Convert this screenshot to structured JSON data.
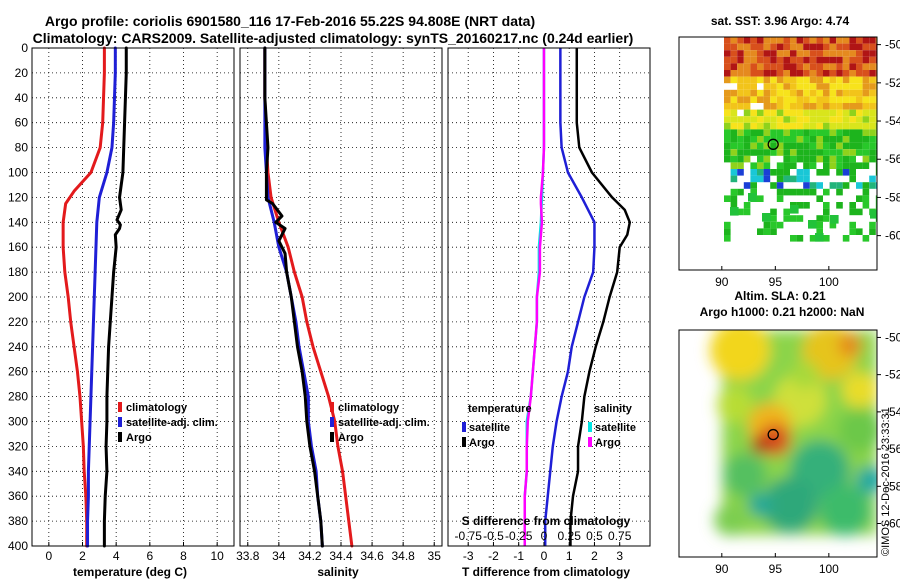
{
  "header": {
    "line1": "Argo profile: coriolis 6901580_116 17-Feb-2016 55.22S 94.808E (NRT data)",
    "line2": "Climatology: CARS2009. Satellite-adjusted climatology: synTS_20160217.nc (0.24d earlier)"
  },
  "colors": {
    "climatology": "#e31a1c",
    "satellite": "#1f1fd6",
    "argo": "#000000",
    "s_sat": "#00e5e5",
    "s_argo": "#ff00ff"
  },
  "chart_data": [
    {
      "type": "line",
      "name": "temperature",
      "xlabel": "temperature (deg C)",
      "ylabel": "",
      "xlim": [
        -1,
        11
      ],
      "ylim": [
        400,
        0
      ],
      "xticks": [
        0,
        2,
        4,
        6,
        8,
        10
      ],
      "yticks": [
        0,
        20,
        40,
        60,
        80,
        100,
        120,
        140,
        160,
        180,
        200,
        220,
        240,
        260,
        280,
        300,
        320,
        340,
        360,
        380,
        400
      ],
      "series": [
        {
          "name": "climatology",
          "color": "#e31a1c",
          "points": [
            [
              3.3,
              0
            ],
            [
              3.3,
              20
            ],
            [
              3.25,
              40
            ],
            [
              3.2,
              60
            ],
            [
              3.05,
              80
            ],
            [
              2.5,
              100
            ],
            [
              1.5,
              115
            ],
            [
              1.0,
              125
            ],
            [
              0.85,
              140
            ],
            [
              0.85,
              160
            ],
            [
              0.95,
              180
            ],
            [
              1.15,
              200
            ],
            [
              1.3,
              220
            ],
            [
              1.5,
              240
            ],
            [
              1.7,
              260
            ],
            [
              1.85,
              280
            ],
            [
              1.95,
              300
            ],
            [
              2.05,
              320
            ],
            [
              2.1,
              340
            ],
            [
              2.2,
              360
            ],
            [
              2.25,
              380
            ],
            [
              2.25,
              400
            ]
          ]
        },
        {
          "name": "satellite-adj. clim.",
          "color": "#1f1fd6",
          "points": [
            [
              3.95,
              0
            ],
            [
              3.95,
              20
            ],
            [
              3.9,
              40
            ],
            [
              3.85,
              60
            ],
            [
              3.75,
              80
            ],
            [
              3.45,
              100
            ],
            [
              3.0,
              120
            ],
            [
              2.85,
              140
            ],
            [
              2.8,
              160
            ],
            [
              2.75,
              180
            ],
            [
              2.7,
              200
            ],
            [
              2.65,
              220
            ],
            [
              2.6,
              240
            ],
            [
              2.55,
              260
            ],
            [
              2.5,
              280
            ],
            [
              2.45,
              300
            ],
            [
              2.4,
              320
            ],
            [
              2.35,
              340
            ],
            [
              2.35,
              360
            ],
            [
              2.3,
              380
            ],
            [
              2.3,
              400
            ]
          ]
        },
        {
          "name": "Argo",
          "color": "#000000",
          "points": [
            [
              4.6,
              0
            ],
            [
              4.6,
              20
            ],
            [
              4.55,
              40
            ],
            [
              4.5,
              60
            ],
            [
              4.45,
              80
            ],
            [
              4.4,
              100
            ],
            [
              4.2,
              120
            ],
            [
              4.3,
              130
            ],
            [
              4.05,
              138
            ],
            [
              4.25,
              142
            ],
            [
              4.2,
              145
            ],
            [
              3.95,
              150
            ],
            [
              4.0,
              160
            ],
            [
              3.85,
              180
            ],
            [
              3.75,
              200
            ],
            [
              3.65,
              220
            ],
            [
              3.55,
              240
            ],
            [
              3.5,
              260
            ],
            [
              3.45,
              280
            ],
            [
              3.45,
              300
            ],
            [
              3.4,
              320
            ],
            [
              3.45,
              340
            ],
            [
              3.35,
              360
            ],
            [
              3.3,
              380
            ],
            [
              3.3,
              400
            ]
          ]
        }
      ],
      "legend": [
        "climatology",
        "satellite-adj. clim.",
        "Argo"
      ]
    },
    {
      "type": "line",
      "name": "salinity",
      "xlabel": "salinity",
      "ylabel": "",
      "xlim": [
        33.75,
        35.05
      ],
      "ylim": [
        400,
        0
      ],
      "xticks": [
        33.8,
        34,
        34.2,
        34.4,
        34.6,
        34.8,
        35
      ],
      "xticklabels": [
        "33.8",
        "34",
        "34.2",
        "34.4",
        "34.6",
        "34.8",
        "35"
      ],
      "series": [
        {
          "name": "climatology",
          "color": "#e31a1c",
          "points": [
            [
              33.91,
              0
            ],
            [
              33.91,
              40
            ],
            [
              33.92,
              80
            ],
            [
              33.93,
              100
            ],
            [
              33.95,
              120
            ],
            [
              34.0,
              140
            ],
            [
              34.06,
              160
            ],
            [
              34.1,
              180
            ],
            [
              34.15,
              200
            ],
            [
              34.18,
              220
            ],
            [
              34.22,
              240
            ],
            [
              34.27,
              260
            ],
            [
              34.32,
              280
            ],
            [
              34.36,
              300
            ],
            [
              34.38,
              320
            ],
            [
              34.41,
              340
            ],
            [
              34.43,
              360
            ],
            [
              34.45,
              380
            ],
            [
              34.47,
              400
            ]
          ]
        },
        {
          "name": "satellite-adj. clim.",
          "color": "#1f1fd6",
          "points": [
            [
              33.91,
              0
            ],
            [
              33.91,
              40
            ],
            [
              33.91,
              80
            ],
            [
              33.92,
              100
            ],
            [
              33.93,
              120
            ],
            [
              33.97,
              140
            ],
            [
              34.0,
              160
            ],
            [
              34.05,
              180
            ],
            [
              34.08,
              200
            ],
            [
              34.11,
              220
            ],
            [
              34.13,
              240
            ],
            [
              34.16,
              260
            ],
            [
              34.19,
              280
            ],
            [
              34.19,
              300
            ],
            [
              34.21,
              320
            ],
            [
              34.24,
              340
            ],
            [
              34.25,
              360
            ],
            [
              34.27,
              380
            ],
            [
              34.28,
              400
            ]
          ]
        },
        {
          "name": "Argo",
          "color": "#000000",
          "points": [
            [
              33.91,
              0
            ],
            [
              33.91,
              40
            ],
            [
              33.92,
              60
            ],
            [
              33.93,
              80
            ],
            [
              33.92,
              100
            ],
            [
              33.92,
              110
            ],
            [
              33.92,
              122
            ],
            [
              33.96,
              125
            ],
            [
              34.02,
              135
            ],
            [
              33.98,
              140
            ],
            [
              34.04,
              145
            ],
            [
              34.0,
              155
            ],
            [
              34.04,
              165
            ],
            [
              34.05,
              180
            ],
            [
              34.08,
              200
            ],
            [
              34.1,
              220
            ],
            [
              34.12,
              240
            ],
            [
              34.15,
              260
            ],
            [
              34.17,
              280
            ],
            [
              34.18,
              300
            ],
            [
              34.2,
              320
            ],
            [
              34.23,
              340
            ],
            [
              34.25,
              360
            ],
            [
              34.27,
              380
            ],
            [
              34.28,
              400
            ]
          ]
        }
      ],
      "legend": [
        "climatology",
        "satellite-adj. clim.",
        "Argo"
      ]
    },
    {
      "type": "line",
      "name": "difference from climatology",
      "xlabel": "T difference from climatology",
      "ylabel": "",
      "xlim": [
        -3.8,
        4.2
      ],
      "ylim": [
        400,
        0
      ],
      "xticks": [
        -3,
        -2,
        -1,
        0,
        1,
        2,
        3
      ],
      "x2label": "S difference from climatology",
      "x2ticks": [
        -0.75,
        -0.5,
        -0.25,
        0,
        0.25,
        0.5,
        0.75
      ],
      "x2ticklabels": [
        "-0.75",
        "-0.5",
        "-0.25",
        "0",
        "0.25",
        "0.5",
        "0.75"
      ],
      "series": [
        {
          "name": "T satellite",
          "color": "#1f1fd6",
          "points": [
            [
              0.65,
              0
            ],
            [
              0.65,
              20
            ],
            [
              0.65,
              40
            ],
            [
              0.65,
              60
            ],
            [
              0.7,
              80
            ],
            [
              0.95,
              100
            ],
            [
              1.5,
              120
            ],
            [
              2.0,
              140
            ],
            [
              2.0,
              160
            ],
            [
              1.95,
              180
            ],
            [
              1.6,
              200
            ],
            [
              1.35,
              220
            ],
            [
              1.1,
              240
            ],
            [
              0.95,
              260
            ],
            [
              0.7,
              280
            ],
            [
              0.5,
              300
            ],
            [
              0.35,
              320
            ],
            [
              0.25,
              340
            ],
            [
              0.15,
              360
            ],
            [
              0.05,
              380
            ],
            [
              0.05,
              400
            ]
          ]
        },
        {
          "name": "T Argo",
          "color": "#000000",
          "points": [
            [
              1.3,
              0
            ],
            [
              1.3,
              20
            ],
            [
              1.3,
              40
            ],
            [
              1.3,
              60
            ],
            [
              1.4,
              80
            ],
            [
              1.9,
              100
            ],
            [
              2.7,
              120
            ],
            [
              3.2,
              130
            ],
            [
              3.4,
              140
            ],
            [
              3.3,
              150
            ],
            [
              3.0,
              160
            ],
            [
              2.9,
              180
            ],
            [
              2.6,
              200
            ],
            [
              2.35,
              220
            ],
            [
              2.05,
              240
            ],
            [
              1.8,
              260
            ],
            [
              1.6,
              280
            ],
            [
              1.5,
              300
            ],
            [
              1.35,
              320
            ],
            [
              1.35,
              340
            ],
            [
              1.15,
              360
            ],
            [
              1.05,
              380
            ],
            [
              1.05,
              400
            ]
          ]
        },
        {
          "name": "S satellite",
          "color": "#00e5e5",
          "points": [
            [
              0.0,
              0
            ],
            [
              0.0,
              40
            ],
            [
              0.0,
              80
            ],
            [
              -0.01,
              100
            ],
            [
              -0.02,
              120
            ],
            [
              -0.03,
              140
            ],
            [
              -0.05,
              160
            ],
            [
              -0.05,
              180
            ],
            [
              -0.07,
              200
            ],
            [
              -0.07,
              220
            ],
            [
              -0.09,
              240
            ],
            [
              -0.11,
              260
            ],
            [
              -0.13,
              280
            ],
            [
              -0.17,
              300
            ],
            [
              -0.17,
              320
            ],
            [
              -0.17,
              340
            ],
            [
              -0.19,
              360
            ],
            [
              -0.19,
              380
            ],
            [
              -0.19,
              400
            ]
          ]
        },
        {
          "name": "S Argo",
          "color": "#ff00ff",
          "points": [
            [
              0.0,
              0
            ],
            [
              0.0,
              40
            ],
            [
              0.0,
              80
            ],
            [
              -0.01,
              100
            ],
            [
              -0.03,
              120
            ],
            [
              -0.03,
              125
            ],
            [
              -0.02,
              140
            ],
            [
              -0.04,
              160
            ],
            [
              -0.04,
              180
            ],
            [
              -0.07,
              200
            ],
            [
              -0.07,
              220
            ],
            [
              -0.09,
              240
            ],
            [
              -0.11,
              260
            ],
            [
              -0.13,
              280
            ],
            [
              -0.16,
              300
            ],
            [
              -0.17,
              320
            ],
            [
              -0.17,
              340
            ],
            [
              -0.19,
              360
            ],
            [
              -0.19,
              380
            ],
            [
              -0.19,
              400
            ]
          ]
        }
      ],
      "legend_left": {
        "title": "temperature",
        "items": [
          "satellite",
          "Argo"
        ]
      },
      "legend_right": {
        "title": "salinity",
        "items": [
          "satellite",
          "Argo"
        ]
      }
    },
    {
      "type": "heatmap",
      "name": "SST map",
      "title": "sat. SST: 3.96 Argo: 4.74",
      "xticks": [
        90,
        95,
        100
      ],
      "yticks": [
        -50,
        -52,
        -54,
        -56,
        -58,
        -60
      ],
      "xlim": [
        86,
        104.5
      ],
      "ylim": [
        -61.8,
        -49.6
      ],
      "marker": {
        "lon": 94.8,
        "lat": -55.22
      }
    },
    {
      "type": "heatmap",
      "name": "SLA map",
      "title": "Altim. SLA: 0.21",
      "subtitle": "Argo h1000: 0.21 h2000: NaN",
      "xticks": [
        90,
        95,
        100
      ],
      "yticks": [
        -50,
        -52,
        -54,
        -56,
        -58,
        -60
      ],
      "xlim": [
        86,
        104.5
      ],
      "ylim": [
        -61.8,
        -49.6
      ],
      "marker": {
        "lon": 94.8,
        "lat": -55.22
      }
    }
  ],
  "watermark": "©IMOS 12-Dec-2016 23:33:31"
}
